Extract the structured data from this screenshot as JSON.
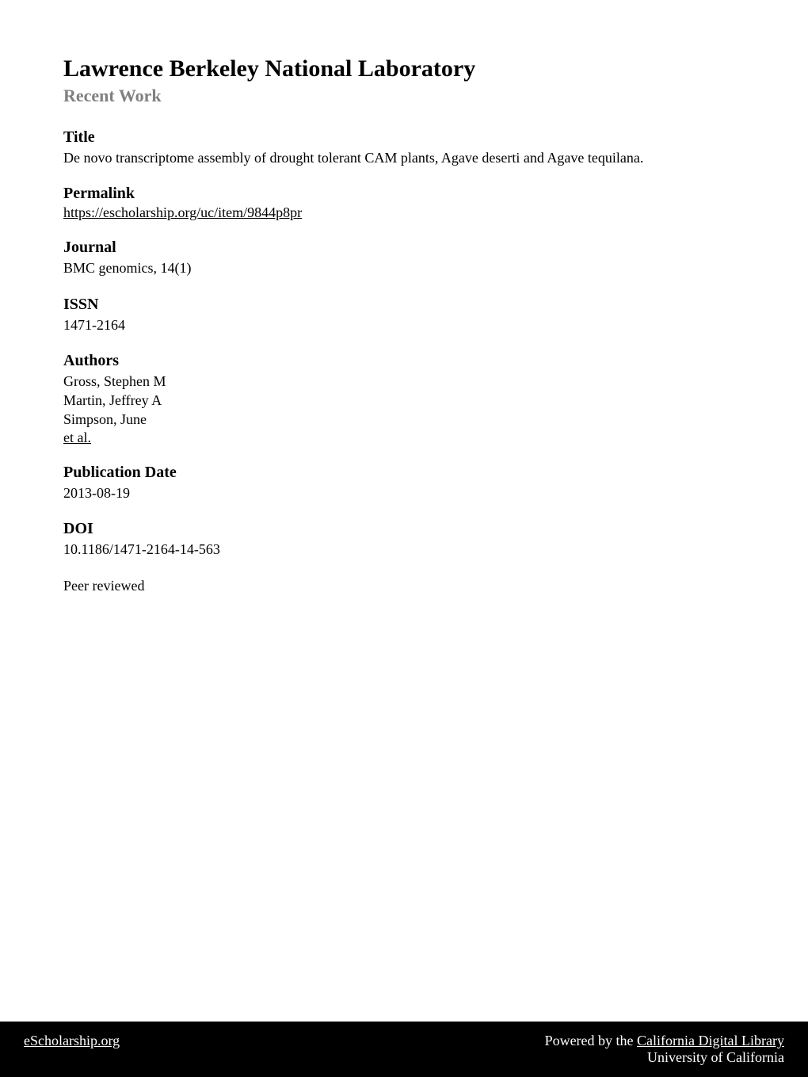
{
  "header": {
    "title": "Lawrence Berkeley National Laboratory",
    "subtitle": "Recent Work"
  },
  "sections": {
    "title": {
      "heading": "Title",
      "body": "De novo transcriptome assembly of drought tolerant CAM plants, Agave deserti and Agave tequilana."
    },
    "permalink": {
      "heading": "Permalink",
      "link": "https://escholarship.org/uc/item/9844p8pr"
    },
    "journal": {
      "heading": "Journal",
      "body": "BMC genomics, 14(1)"
    },
    "issn": {
      "heading": "ISSN",
      "body": "1471-2164"
    },
    "authors": {
      "heading": "Authors",
      "list": [
        "Gross, Stephen M",
        "Martin, Jeffrey A",
        "Simpson, June"
      ],
      "etal": "et al."
    },
    "pubdate": {
      "heading": "Publication Date",
      "body": "2013-08-19"
    },
    "doi": {
      "heading": "DOI",
      "body": "10.1186/1471-2164-14-563"
    },
    "peer": {
      "body": "Peer reviewed"
    }
  },
  "footer": {
    "left": "eScholarship.org",
    "right_prefix": "Powered by the ",
    "right_link": "California Digital Library",
    "right_line2": "University of California"
  },
  "colors": {
    "background": "#ffffff",
    "text": "#000000",
    "subtitle_gray": "#808080",
    "footer_bg": "#000000",
    "footer_text": "#ffffff"
  },
  "typography": {
    "title_size": 30,
    "subtitle_size": 22,
    "heading_size": 20,
    "body_size": 18,
    "footer_size": 18
  }
}
